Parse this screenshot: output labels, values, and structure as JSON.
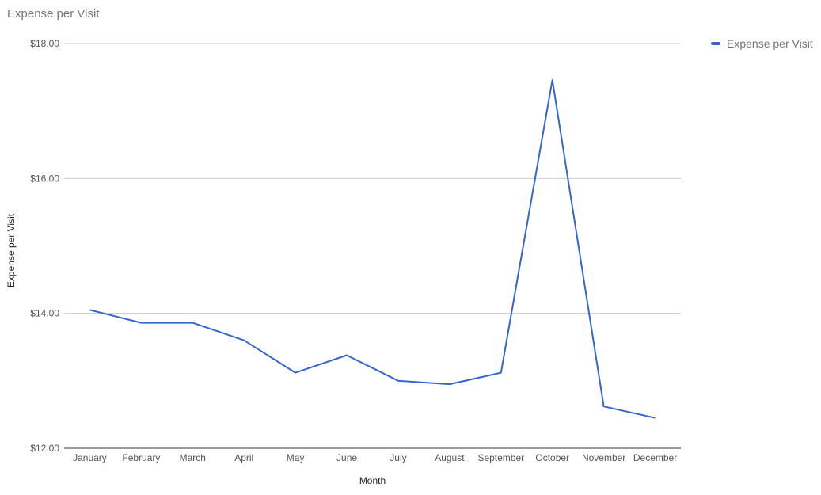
{
  "chart_data": {
    "type": "line",
    "title": "Expense per Visit",
    "xlabel": "Month",
    "ylabel": "Expense per Visit",
    "ylim": [
      12,
      18
    ],
    "y_ticks": [
      12,
      14,
      16,
      18
    ],
    "y_tick_labels": [
      "$12.00",
      "$14.00",
      "$16.00",
      "$18.00"
    ],
    "categories": [
      "January",
      "February",
      "March",
      "April",
      "May",
      "June",
      "July",
      "August",
      "September",
      "October",
      "November",
      "December"
    ],
    "series": [
      {
        "name": "Expense per Visit",
        "color": "#3366cc",
        "values": [
          14.05,
          13.86,
          13.86,
          13.6,
          13.12,
          13.38,
          13.0,
          12.95,
          13.12,
          17.46,
          12.62,
          12.45
        ]
      }
    ],
    "grid": true,
    "legend_position": "right"
  }
}
